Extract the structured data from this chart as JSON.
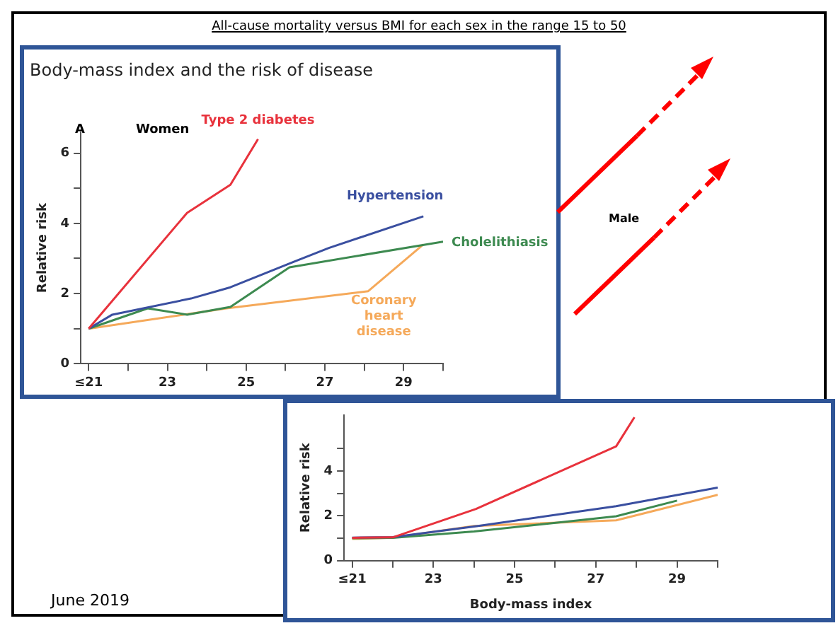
{
  "chart_data": [
    {
      "type": "other",
      "title": "All-cause mortality versus BMI for each sex in the range 15 to 50",
      "annotations": [
        "Male",
        "June 2019"
      ]
    },
    {
      "type": "line",
      "title": "Body-mass index and the risk of disease",
      "ylabel": "Relative risk",
      "annotations": [
        "A",
        "Women"
      ],
      "xlim": [
        20.8,
        30
      ],
      "xticks": [
        {
          "value": 21,
          "label": "≤21"
        },
        {
          "value": 22,
          "label": null
        },
        23,
        {
          "value": 24,
          "label": null
        },
        25,
        {
          "value": 26,
          "label": null
        },
        27,
        {
          "value": 28,
          "label": null
        },
        29,
        {
          "value": 30,
          "label": null
        }
      ],
      "ylim": [
        0,
        6.6
      ],
      "yticks": [
        0,
        {
          "value": 1,
          "label": null
        },
        2,
        {
          "value": 3,
          "label": null
        },
        4,
        {
          "value": 5,
          "label": null
        },
        6
      ],
      "grid": false,
      "legend": false,
      "marker": "none",
      "line_style": "solid",
      "series": [
        {
          "name": "Type 2 diabetes",
          "color": "#e8323c",
          "x": [
            21,
            23.5,
            24.6,
            25.3
          ],
          "values": [
            1,
            4.3,
            5.1,
            6.4
          ]
        },
        {
          "name": "Hypertension",
          "color": "#3a4fa0",
          "x": [
            21,
            21.6,
            23.6,
            24.6,
            26.2,
            27.1,
            29.5
          ],
          "values": [
            1,
            1.4,
            1.86,
            2.18,
            2.9,
            3.3,
            4.2
          ]
        },
        {
          "name": "Cholelithiasis",
          "color": "#3d8a50",
          "x": [
            21,
            22.5,
            23.5,
            24.6,
            26.1,
            30
          ],
          "values": [
            1,
            1.58,
            1.4,
            1.62,
            2.75,
            3.48
          ]
        },
        {
          "name": "Coronary heart disease",
          "color": "#f5a95a",
          "x": [
            21,
            24.5,
            28.1,
            29.5
          ],
          "values": [
            1,
            1.58,
            2.07,
            3.4
          ]
        }
      ]
    },
    {
      "type": "line",
      "ylabel": "Relative risk",
      "xlabel": "Body-mass index",
      "xlim": [
        20.8,
        30
      ],
      "xticks": [
        {
          "value": 21,
          "label": "≤21"
        },
        {
          "value": 22,
          "label": null
        },
        23,
        {
          "value": 24,
          "label": null
        },
        25,
        {
          "value": 26,
          "label": null
        },
        27,
        {
          "value": 28,
          "label": null
        },
        29,
        {
          "value": 30,
          "label": null
        }
      ],
      "ylim": [
        0,
        6.5
      ],
      "yticks": [
        0,
        {
          "value": 1,
          "label": null
        },
        2,
        {
          "value": 3,
          "label": null
        },
        4,
        {
          "value": 5,
          "label": null
        }
      ],
      "grid": false,
      "legend": false,
      "marker": "none",
      "line_style": "solid",
      "series": [
        {
          "color": "#e8323c",
          "x": [
            21,
            22,
            24.05,
            27.5,
            27.95
          ],
          "values": [
            1.02,
            1.04,
            2.31,
            5.1,
            6.4
          ]
        },
        {
          "color": "#3a4fa0",
          "x": [
            21,
            22,
            24.1,
            27.5,
            30
          ],
          "values": [
            1.03,
            1.05,
            1.55,
            2.43,
            3.26
          ]
        },
        {
          "color": "#3d8a50",
          "x": [
            21,
            22,
            24,
            27.5,
            29
          ],
          "values": [
            1,
            1.02,
            1.3,
            1.98,
            2.68
          ]
        },
        {
          "color": "#f5a95a",
          "x": [
            21,
            22,
            24,
            27.5,
            30
          ],
          "values": [
            0.97,
            1.03,
            1.55,
            1.8,
            2.94
          ]
        }
      ]
    }
  ]
}
